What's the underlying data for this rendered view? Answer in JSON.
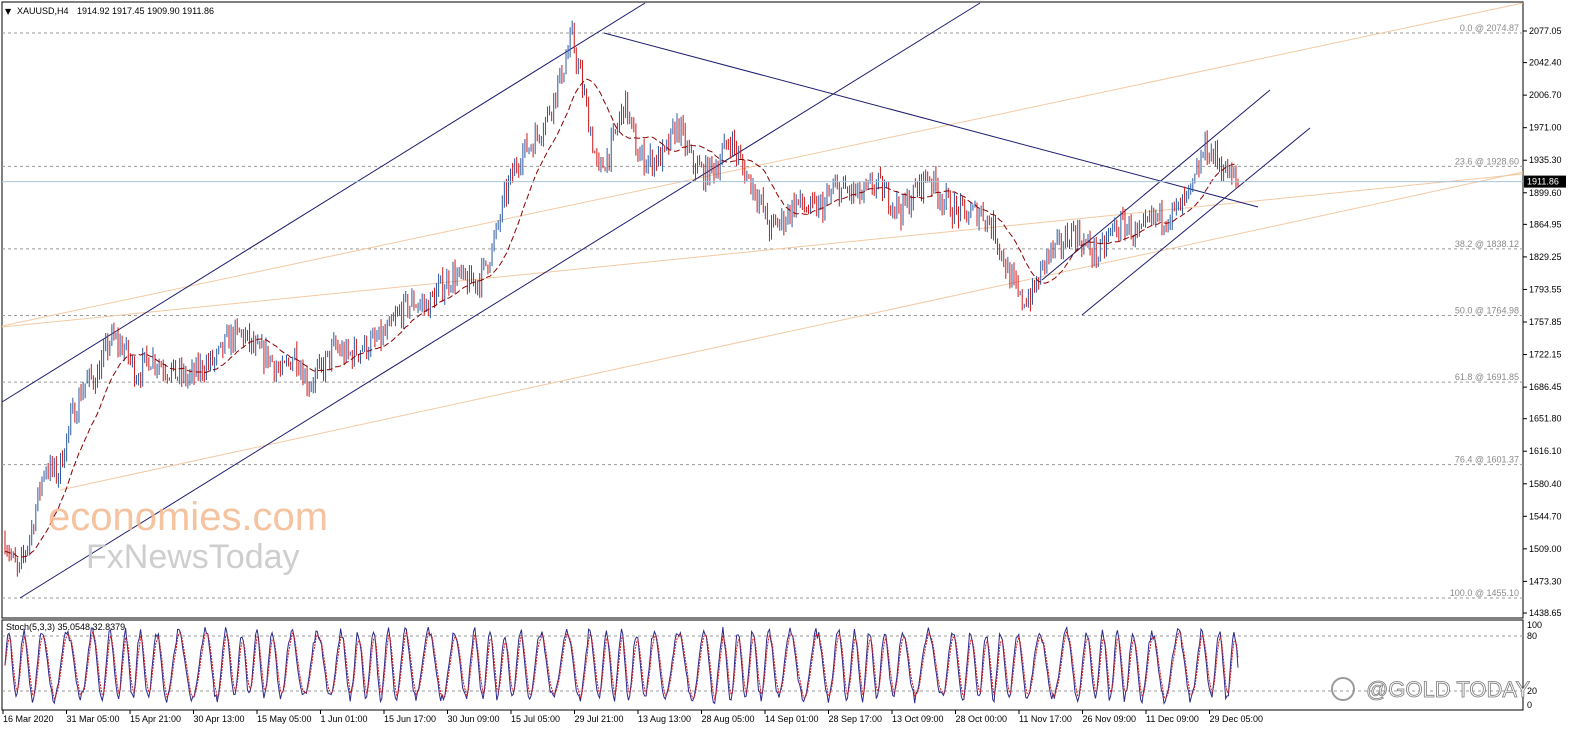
{
  "header": {
    "symbol": "XAUUSD,H4",
    "ohlc": "1914.92 1917.45 1909.90 1911.86"
  },
  "stoch_header": "Stoch(5,3,3) 35.0548 32.8379",
  "current_price": "1911.86",
  "watermarks": {
    "brand_top": "economies.com",
    "brand_bottom": "FxNewsToday",
    "corner": "@GOLD TODAY"
  },
  "chart_data": {
    "type": "candlestick",
    "instrument": "XAUUSD",
    "timeframe": "H4",
    "price_axis": {
      "ticks": [
        "2077.05",
        "2042.40",
        "2006.70",
        "1971.00",
        "1935.30",
        "1899.60",
        "1864.95",
        "1829.25",
        "1793.55",
        "1757.85",
        "1722.15",
        "1686.45",
        "1651.80",
        "1616.10",
        "1580.40",
        "1544.70",
        "1509.00",
        "1473.30",
        "1438.65"
      ],
      "range": [
        1438.65,
        2095
      ]
    },
    "time_axis": {
      "labels": [
        "16 Mar 2020",
        "31 Mar 05:00",
        "15 Apr 21:00",
        "30 Apr 13:00",
        "15 May 05:00",
        "1 Jun 01:00",
        "15 Jun 17:00",
        "30 Jun 09:00",
        "15 Jul 05:00",
        "29 Jul 21:00",
        "13 Aug 13:00",
        "28 Aug 05:00",
        "14 Sep 01:00",
        "28 Sep 17:00",
        "13 Oct 09:00",
        "28 Oct 00:00",
        "11 Nov 17:00",
        "26 Nov 09:00",
        "11 Dec 09:00",
        "29 Dec 05:00"
      ]
    },
    "fibonacci_levels": [
      {
        "label": "0.0 @ 2074.87",
        "value": 2074.87
      },
      {
        "label": "23.6 @ 1928.60",
        "value": 1928.6
      },
      {
        "label": "38.2 @ 1838.12",
        "value": 1838.12
      },
      {
        "label": "50.0 @ 1764.98",
        "value": 1764.98
      },
      {
        "label": "61.8 @ 1691.85",
        "value": 1691.85
      },
      {
        "label": "76.4 @ 1601.37",
        "value": 1601.37
      },
      {
        "label": "100.0 @ 1455.10",
        "value": 1455.1
      }
    ],
    "price_path": [
      [
        0,
        1520
      ],
      [
        2,
        1480
      ],
      [
        4,
        1530
      ],
      [
        6,
        1600
      ],
      [
        8,
        1590
      ],
      [
        10,
        1650
      ],
      [
        12,
        1690
      ],
      [
        14,
        1700
      ],
      [
        16,
        1740
      ],
      [
        18,
        1730
      ],
      [
        20,
        1700
      ],
      [
        22,
        1720
      ],
      [
        24,
        1710
      ],
      [
        26,
        1700
      ],
      [
        28,
        1695
      ],
      [
        30,
        1710
      ],
      [
        32,
        1715
      ],
      [
        34,
        1740
      ],
      [
        36,
        1745
      ],
      [
        38,
        1725
      ],
      [
        40,
        1720
      ],
      [
        42,
        1700
      ],
      [
        44,
        1725
      ],
      [
        46,
        1690
      ],
      [
        48,
        1705
      ],
      [
        50,
        1730
      ],
      [
        52,
        1720
      ],
      [
        54,
        1730
      ],
      [
        56,
        1735
      ],
      [
        58,
        1745
      ],
      [
        60,
        1770
      ],
      [
        62,
        1780
      ],
      [
        64,
        1775
      ],
      [
        66,
        1795
      ],
      [
        68,
        1810
      ],
      [
        70,
        1800
      ],
      [
        72,
        1805
      ],
      [
        74,
        1840
      ],
      [
        76,
        1900
      ],
      [
        78,
        1940
      ],
      [
        80,
        1955
      ],
      [
        82,
        1980
      ],
      [
        84,
        2020
      ],
      [
        86,
        2070
      ],
      [
        88,
        2000
      ],
      [
        90,
        1920
      ],
      [
        92,
        1950
      ],
      [
        94,
        2000
      ],
      [
        96,
        1940
      ],
      [
        98,
        1935
      ],
      [
        100,
        1940
      ],
      [
        102,
        1975
      ],
      [
        104,
        1935
      ],
      [
        106,
        1920
      ],
      [
        108,
        1930
      ],
      [
        110,
        1960
      ],
      [
        112,
        1925
      ],
      [
        114,
        1900
      ],
      [
        116,
        1860
      ],
      [
        118,
        1870
      ],
      [
        120,
        1890
      ],
      [
        122,
        1880
      ],
      [
        124,
        1885
      ],
      [
        126,
        1905
      ],
      [
        128,
        1900
      ],
      [
        130,
        1895
      ],
      [
        132,
        1910
      ],
      [
        134,
        1895
      ],
      [
        136,
        1880
      ],
      [
        138,
        1900
      ],
      [
        140,
        1920
      ],
      [
        142,
        1895
      ],
      [
        144,
        1880
      ],
      [
        146,
        1875
      ],
      [
        148,
        1880
      ],
      [
        150,
        1860
      ],
      [
        152,
        1815
      ],
      [
        154,
        1780
      ],
      [
        156,
        1790
      ],
      [
        158,
        1830
      ],
      [
        160,
        1840
      ],
      [
        162,
        1860
      ],
      [
        164,
        1840
      ],
      [
        166,
        1830
      ],
      [
        168,
        1860
      ],
      [
        170,
        1865
      ],
      [
        172,
        1850
      ],
      [
        174,
        1870
      ],
      [
        176,
        1875
      ],
      [
        178,
        1880
      ],
      [
        180,
        1900
      ],
      [
        182,
        1950
      ],
      [
        184,
        1935
      ],
      [
        186,
        1915
      ],
      [
        187,
        1911.86
      ]
    ],
    "moving_average": {
      "style": "dashed",
      "color": "#8b0000"
    },
    "trend_channels": [
      {
        "name": "",
        "color": "#1a1a6e"
      },
      {
        "name": "",
        "color": "#1a1a6e"
      }
    ],
    "fan_lines_color": "#f2c6a0",
    "oscillator": {
      "name": "Stoch(5,3,3)",
      "main": 35.0548,
      "signal": 32.8379,
      "levels": [
        80,
        20
      ],
      "axis_ticks": [
        "100",
        "80",
        "20",
        "0"
      ]
    }
  },
  "colors": {
    "bull": "#2b5aa0",
    "bear": "#d01818",
    "grid_dash": "#9a9a9a",
    "channel": "#1a1a6e",
    "fan": "#f3c9a3",
    "current_line": "#a9c4d8",
    "watermark_orange": "#f4b98f",
    "watermark_gray": "#c9c9c9"
  }
}
